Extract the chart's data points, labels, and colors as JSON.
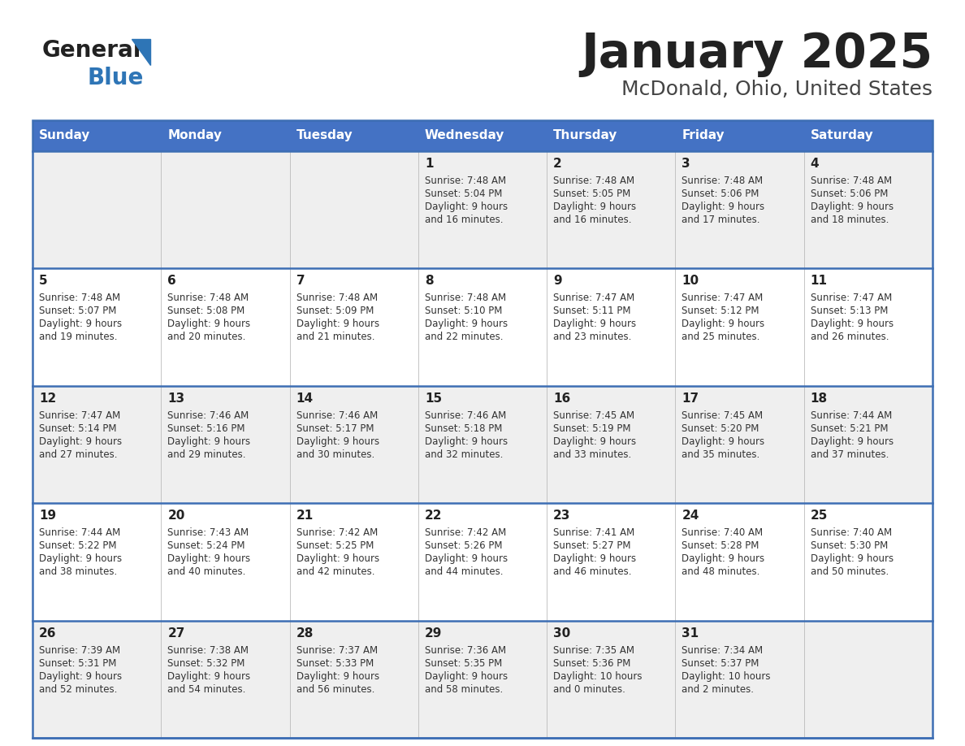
{
  "title": "January 2025",
  "subtitle": "McDonald, Ohio, United States",
  "days_of_week": [
    "Sunday",
    "Monday",
    "Tuesday",
    "Wednesday",
    "Thursday",
    "Friday",
    "Saturday"
  ],
  "header_bg": "#4472C4",
  "header_text": "#FFFFFF",
  "row_bg_light": "#EFEFEF",
  "row_bg_white": "#FFFFFF",
  "cell_text_color": "#333333",
  "day_number_color": "#222222",
  "title_color": "#222222",
  "subtitle_color": "#444444",
  "logo_general_color": "#222222",
  "logo_blue_color": "#2E75B6",
  "divider_color": "#3D6EB4",
  "calendar": [
    [
      {
        "day": null,
        "sunrise": null,
        "sunset": null,
        "daylight_h": null,
        "daylight_m": null
      },
      {
        "day": null,
        "sunrise": null,
        "sunset": null,
        "daylight_h": null,
        "daylight_m": null
      },
      {
        "day": null,
        "sunrise": null,
        "sunset": null,
        "daylight_h": null,
        "daylight_m": null
      },
      {
        "day": 1,
        "sunrise": "7:48 AM",
        "sunset": "5:04 PM",
        "daylight_h": "9 hours",
        "daylight_m": "16 minutes."
      },
      {
        "day": 2,
        "sunrise": "7:48 AM",
        "sunset": "5:05 PM",
        "daylight_h": "9 hours",
        "daylight_m": "16 minutes."
      },
      {
        "day": 3,
        "sunrise": "7:48 AM",
        "sunset": "5:06 PM",
        "daylight_h": "9 hours",
        "daylight_m": "17 minutes."
      },
      {
        "day": 4,
        "sunrise": "7:48 AM",
        "sunset": "5:06 PM",
        "daylight_h": "9 hours",
        "daylight_m": "18 minutes."
      }
    ],
    [
      {
        "day": 5,
        "sunrise": "7:48 AM",
        "sunset": "5:07 PM",
        "daylight_h": "9 hours",
        "daylight_m": "19 minutes."
      },
      {
        "day": 6,
        "sunrise": "7:48 AM",
        "sunset": "5:08 PM",
        "daylight_h": "9 hours",
        "daylight_m": "20 minutes."
      },
      {
        "day": 7,
        "sunrise": "7:48 AM",
        "sunset": "5:09 PM",
        "daylight_h": "9 hours",
        "daylight_m": "21 minutes."
      },
      {
        "day": 8,
        "sunrise": "7:48 AM",
        "sunset": "5:10 PM",
        "daylight_h": "9 hours",
        "daylight_m": "22 minutes."
      },
      {
        "day": 9,
        "sunrise": "7:47 AM",
        "sunset": "5:11 PM",
        "daylight_h": "9 hours",
        "daylight_m": "23 minutes."
      },
      {
        "day": 10,
        "sunrise": "7:47 AM",
        "sunset": "5:12 PM",
        "daylight_h": "9 hours",
        "daylight_m": "25 minutes."
      },
      {
        "day": 11,
        "sunrise": "7:47 AM",
        "sunset": "5:13 PM",
        "daylight_h": "9 hours",
        "daylight_m": "26 minutes."
      }
    ],
    [
      {
        "day": 12,
        "sunrise": "7:47 AM",
        "sunset": "5:14 PM",
        "daylight_h": "9 hours",
        "daylight_m": "27 minutes."
      },
      {
        "day": 13,
        "sunrise": "7:46 AM",
        "sunset": "5:16 PM",
        "daylight_h": "9 hours",
        "daylight_m": "29 minutes."
      },
      {
        "day": 14,
        "sunrise": "7:46 AM",
        "sunset": "5:17 PM",
        "daylight_h": "9 hours",
        "daylight_m": "30 minutes."
      },
      {
        "day": 15,
        "sunrise": "7:46 AM",
        "sunset": "5:18 PM",
        "daylight_h": "9 hours",
        "daylight_m": "32 minutes."
      },
      {
        "day": 16,
        "sunrise": "7:45 AM",
        "sunset": "5:19 PM",
        "daylight_h": "9 hours",
        "daylight_m": "33 minutes."
      },
      {
        "day": 17,
        "sunrise": "7:45 AM",
        "sunset": "5:20 PM",
        "daylight_h": "9 hours",
        "daylight_m": "35 minutes."
      },
      {
        "day": 18,
        "sunrise": "7:44 AM",
        "sunset": "5:21 PM",
        "daylight_h": "9 hours",
        "daylight_m": "37 minutes."
      }
    ],
    [
      {
        "day": 19,
        "sunrise": "7:44 AM",
        "sunset": "5:22 PM",
        "daylight_h": "9 hours",
        "daylight_m": "38 minutes."
      },
      {
        "day": 20,
        "sunrise": "7:43 AM",
        "sunset": "5:24 PM",
        "daylight_h": "9 hours",
        "daylight_m": "40 minutes."
      },
      {
        "day": 21,
        "sunrise": "7:42 AM",
        "sunset": "5:25 PM",
        "daylight_h": "9 hours",
        "daylight_m": "42 minutes."
      },
      {
        "day": 22,
        "sunrise": "7:42 AM",
        "sunset": "5:26 PM",
        "daylight_h": "9 hours",
        "daylight_m": "44 minutes."
      },
      {
        "day": 23,
        "sunrise": "7:41 AM",
        "sunset": "5:27 PM",
        "daylight_h": "9 hours",
        "daylight_m": "46 minutes."
      },
      {
        "day": 24,
        "sunrise": "7:40 AM",
        "sunset": "5:28 PM",
        "daylight_h": "9 hours",
        "daylight_m": "48 minutes."
      },
      {
        "day": 25,
        "sunrise": "7:40 AM",
        "sunset": "5:30 PM",
        "daylight_h": "9 hours",
        "daylight_m": "50 minutes."
      }
    ],
    [
      {
        "day": 26,
        "sunrise": "7:39 AM",
        "sunset": "5:31 PM",
        "daylight_h": "9 hours",
        "daylight_m": "52 minutes."
      },
      {
        "day": 27,
        "sunrise": "7:38 AM",
        "sunset": "5:32 PM",
        "daylight_h": "9 hours",
        "daylight_m": "54 minutes."
      },
      {
        "day": 28,
        "sunrise": "7:37 AM",
        "sunset": "5:33 PM",
        "daylight_h": "9 hours",
        "daylight_m": "56 minutes."
      },
      {
        "day": 29,
        "sunrise": "7:36 AM",
        "sunset": "5:35 PM",
        "daylight_h": "9 hours",
        "daylight_m": "58 minutes."
      },
      {
        "day": 30,
        "sunrise": "7:35 AM",
        "sunset": "5:36 PM",
        "daylight_h": "10 hours",
        "daylight_m": "0 minutes."
      },
      {
        "day": 31,
        "sunrise": "7:34 AM",
        "sunset": "5:37 PM",
        "daylight_h": "10 hours",
        "daylight_m": "2 minutes."
      },
      {
        "day": null,
        "sunrise": null,
        "sunset": null,
        "daylight_h": null,
        "daylight_m": null
      }
    ]
  ]
}
